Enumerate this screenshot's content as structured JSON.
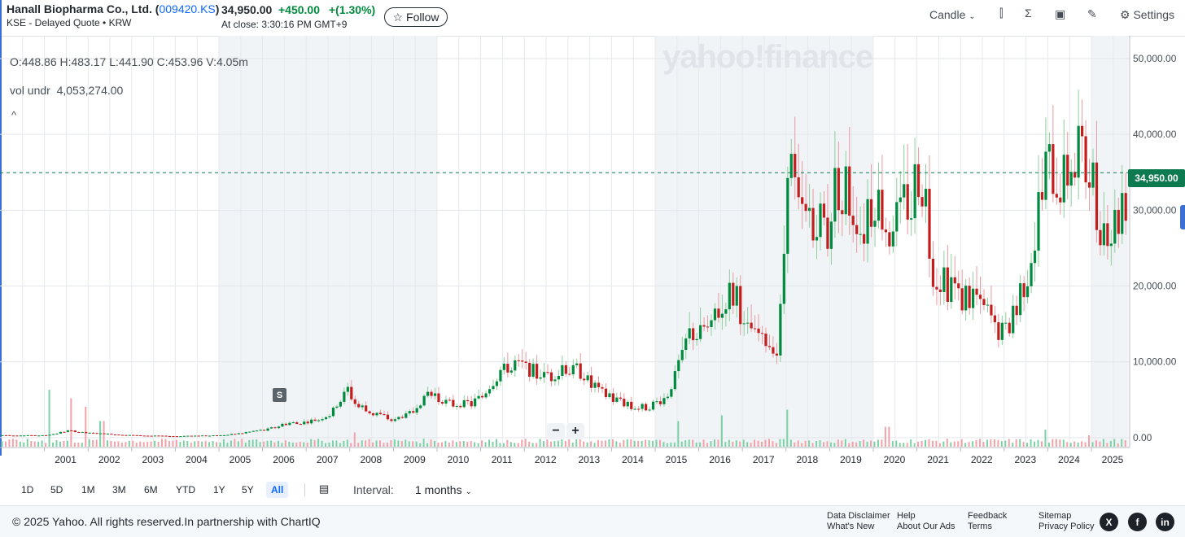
{
  "header": {
    "company": "Hanall Biopharma Co., Ltd.",
    "ticker": "009420.KS",
    "exchange_line": "KSE - Delayed Quote • KRW",
    "price": "34,950.00",
    "change": "+450.00",
    "change_pct": "+(1.30%)",
    "at_close": "At close: 3:30:16 PM GMT+9",
    "follow_label": "Follow",
    "chart_type_label": "Candle",
    "settings_label": "Settings"
  },
  "overlay": {
    "ohlc": "O:448.86  H:483.17  L:441.90  C:453.96  V:4.05m",
    "vol_label": "vol undr",
    "vol_value": "4,053,274.00",
    "logo": "yahoo!finance",
    "split_marker": "S",
    "current_price_tag": "34,950.00"
  },
  "ranges": [
    "1D",
    "5D",
    "1M",
    "3M",
    "6M",
    "YTD",
    "1Y",
    "5Y",
    "All"
  ],
  "active_range": "All",
  "interval_label": "Interval:",
  "interval_value": "1 months",
  "footer": {
    "copyright": "© 2025 Yahoo. All rights reserved.In partnership with ChartIQ",
    "links": [
      "Data Disclaimer",
      "What's New",
      "Help",
      "About Our Ads",
      "Feedback",
      "Terms",
      "Sitemap",
      "Privacy Policy"
    ],
    "social": [
      "X",
      "f",
      "in"
    ]
  },
  "colors": {
    "up": "#008a3d",
    "down": "#c41d1d",
    "accent": "#0f69ff",
    "price_line": "#0e7a4f"
  },
  "chart_data": {
    "type": "candlestick",
    "x_labels": [
      "2001",
      "2002",
      "2003",
      "2004",
      "2005",
      "2006",
      "2007",
      "2008",
      "2009",
      "2010",
      "2011",
      "2012",
      "2013",
      "2014",
      "2015",
      "2016",
      "2017",
      "2018",
      "2019",
      "2020",
      "2021",
      "2022",
      "2023",
      "2024",
      "2025"
    ],
    "y_tick_labels": [
      "0.00",
      "10,000.00",
      "20,000.00",
      "30,000.00",
      "40,000.00",
      "50,000.00"
    ],
    "ylim": [
      -1300,
      53000
    ],
    "current_price": 34950,
    "shaded_periods": [
      [
        2005.0,
        2010.0
      ],
      [
        2015.0,
        2020.0
      ],
      [
        2025.0,
        2025.85
      ]
    ],
    "anchors": [
      [
        2000.0,
        300
      ],
      [
        2001.0,
        300
      ],
      [
        2001.5,
        900
      ],
      [
        2002.0,
        600
      ],
      [
        2003.0,
        300
      ],
      [
        2004.0,
        200
      ],
      [
        2005.0,
        300
      ],
      [
        2005.5,
        600
      ],
      [
        2006.0,
        1000
      ],
      [
        2006.5,
        1800
      ],
      [
        2007.0,
        2000
      ],
      [
        2007.5,
        3000
      ],
      [
        2007.9,
        6200
      ],
      [
        2008.2,
        4000
      ],
      [
        2008.6,
        3000
      ],
      [
        2009.0,
        2300
      ],
      [
        2009.4,
        3500
      ],
      [
        2009.8,
        6000
      ],
      [
        2010.2,
        4500
      ],
      [
        2010.8,
        4500
      ],
      [
        2011.2,
        7000
      ],
      [
        2011.6,
        9500
      ],
      [
        2012.0,
        9200
      ],
      [
        2012.5,
        8000
      ],
      [
        2012.9,
        9000
      ],
      [
        2013.2,
        9000
      ],
      [
        2013.6,
        6500
      ],
      [
        2014.0,
        5000
      ],
      [
        2014.4,
        4200
      ],
      [
        2014.8,
        4000
      ],
      [
        2015.2,
        5000
      ],
      [
        2015.5,
        9500
      ],
      [
        2015.8,
        14000
      ],
      [
        2016.2,
        13500
      ],
      [
        2016.5,
        18000
      ],
      [
        2016.8,
        19000
      ],
      [
        2017.0,
        14000
      ],
      [
        2017.4,
        13000
      ],
      [
        2017.8,
        12000
      ],
      [
        2018.0,
        38000
      ],
      [
        2018.3,
        28000
      ],
      [
        2018.6,
        29000
      ],
      [
        2018.9,
        27000
      ],
      [
        2019.1,
        34000
      ],
      [
        2019.4,
        32000
      ],
      [
        2019.7,
        28000
      ],
      [
        2020.0,
        31000
      ],
      [
        2020.3,
        28000
      ],
      [
        2020.6,
        30000
      ],
      [
        2020.9,
        33000
      ],
      [
        2021.1,
        34000
      ],
      [
        2021.3,
        22000
      ],
      [
        2021.8,
        19000
      ],
      [
        2022.2,
        18000
      ],
      [
        2022.6,
        16000
      ],
      [
        2022.8,
        14000
      ],
      [
        2023.1,
        14500
      ],
      [
        2023.4,
        20000
      ],
      [
        2023.7,
        27000
      ],
      [
        2023.9,
        36000
      ],
      [
        2024.2,
        33000
      ],
      [
        2024.5,
        38000
      ],
      [
        2024.8,
        37000
      ],
      [
        2025.0,
        33000
      ],
      [
        2025.25,
        26000
      ],
      [
        2025.5,
        28000
      ],
      [
        2025.7,
        30000
      ],
      [
        2025.85,
        34950
      ]
    ],
    "volume_spikes": [
      {
        "x": 2001.1,
        "v": 1.0
      },
      {
        "x": 2001.6,
        "v": 0.85
      },
      {
        "x": 2001.9,
        "v": 0.7
      },
      {
        "x": 2002.3,
        "v": 0.45
      },
      {
        "x": 2008.1,
        "v": 0.25
      },
      {
        "x": 2015.5,
        "v": 0.45
      },
      {
        "x": 2016.5,
        "v": 0.55
      },
      {
        "x": 2018.0,
        "v": 0.65
      },
      {
        "x": 2020.3,
        "v": 0.35
      },
      {
        "x": 2023.9,
        "v": 0.3
      },
      {
        "x": 2024.9,
        "v": 0.2
      }
    ]
  }
}
